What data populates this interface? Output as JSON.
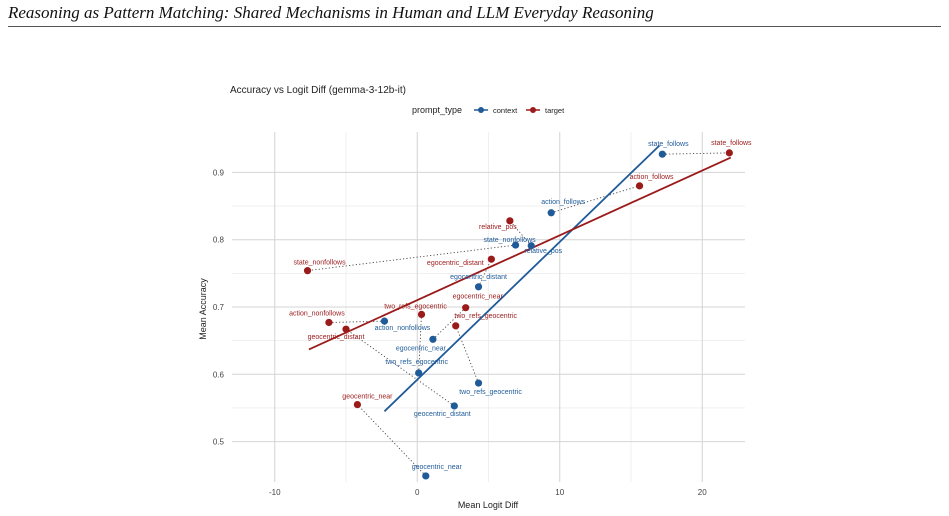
{
  "header": {
    "running_title": "Reasoning as Pattern Matching: Shared Mechanisms in Human and LLM Everyday Reasoning"
  },
  "chart_data": {
    "type": "scatter",
    "title": "Accuracy vs Logit Diff (gemma-3-12b-it)",
    "xlabel": "Mean Logit Diff",
    "ylabel": "Mean Accuracy",
    "xlim": [
      -13,
      23
    ],
    "ylim": [
      0.44,
      0.96
    ],
    "xticks": [
      -10,
      0,
      10,
      20
    ],
    "yticks": [
      0.5,
      0.6,
      0.7,
      0.8,
      0.9
    ],
    "grid": true,
    "legend": {
      "title": "prompt_type",
      "position": "top",
      "entries": [
        {
          "label": "context",
          "color": "#1f5b99"
        },
        {
          "label": "target",
          "color": "#9b1b1b"
        }
      ]
    },
    "series": [
      {
        "name": "context",
        "color": "#1f5b99",
        "points": [
          {
            "label": "state_follows",
            "x": 17.2,
            "y": 0.927
          },
          {
            "label": "action_follows",
            "x": 9.4,
            "y": 0.84
          },
          {
            "label": "state_nonfollows",
            "x": 6.9,
            "y": 0.792
          },
          {
            "label": "relative_pos",
            "x": 8.0,
            "y": 0.791
          },
          {
            "label": "egocentric_distant",
            "x": 4.3,
            "y": 0.73
          },
          {
            "label": "action_nonfollows",
            "x": -2.3,
            "y": 0.679
          },
          {
            "label": "egocentric_near",
            "x": 1.1,
            "y": 0.652
          },
          {
            "label": "two_refs_egocentric",
            "x": 0.1,
            "y": 0.602
          },
          {
            "label": "two_refs_geocentric",
            "x": 4.3,
            "y": 0.587
          },
          {
            "label": "geocentric_distant",
            "x": 2.6,
            "y": 0.553
          },
          {
            "label": "geocentric_near",
            "x": 0.6,
            "y": 0.449
          }
        ],
        "trend": {
          "x": [
            -2.3,
            17.0
          ],
          "y": [
            0.545,
            0.94
          ]
        }
      },
      {
        "name": "target",
        "color": "#9b1b1b",
        "points": [
          {
            "label": "state_follows",
            "x": 21.9,
            "y": 0.929
          },
          {
            "label": "action_follows",
            "x": 15.6,
            "y": 0.88
          },
          {
            "label": "relative_pos",
            "x": 6.5,
            "y": 0.828
          },
          {
            "label": "egocentric_distant",
            "x": 5.2,
            "y": 0.771
          },
          {
            "label": "state_nonfollows",
            "x": -7.7,
            "y": 0.754
          },
          {
            "label": "egocentric_near",
            "x": 3.4,
            "y": 0.699
          },
          {
            "label": "two_refs_egocentric",
            "x": 0.3,
            "y": 0.689
          },
          {
            "label": "action_nonfollows",
            "x": -6.2,
            "y": 0.677
          },
          {
            "label": "two_refs_geocentric",
            "x": 2.7,
            "y": 0.672
          },
          {
            "label": "geocentric_distant",
            "x": -5.0,
            "y": 0.667
          },
          {
            "label": "geocentric_near",
            "x": -4.2,
            "y": 0.555
          }
        ],
        "trend": {
          "x": [
            -7.6,
            22.0
          ],
          "y": [
            0.637,
            0.922
          ]
        }
      }
    ],
    "pairs": [
      "state_follows",
      "action_follows",
      "relative_pos",
      "egocentric_distant",
      "state_nonfollows",
      "egocentric_near",
      "two_refs_egocentric",
      "action_nonfollows",
      "two_refs_geocentric",
      "geocentric_distant",
      "geocentric_near"
    ]
  }
}
